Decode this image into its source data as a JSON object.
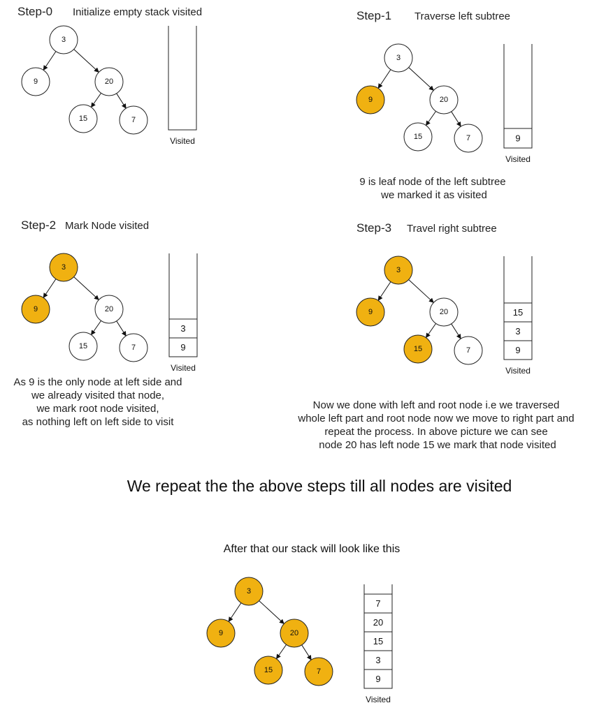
{
  "colors": {
    "visited": "#f0b111",
    "unvisited": "#ffffff"
  },
  "steps": [
    {
      "id": "step-0",
      "label": "Step-0",
      "title": "Initialize empty stack visited",
      "tree": {
        "3": false,
        "9": false,
        "20": false,
        "15": false,
        "7": false
      },
      "stack": [],
      "stack_label": "Visited",
      "caption": []
    },
    {
      "id": "step-1",
      "label": "Step-1",
      "title": "Traverse left subtree",
      "tree": {
        "3": false,
        "9": true,
        "20": false,
        "15": false,
        "7": false
      },
      "stack": [
        "9"
      ],
      "stack_label": "Visited",
      "caption": [
        "9 is leaf node of the left subtree",
        "we marked it as visited"
      ]
    },
    {
      "id": "step-2",
      "label": "Step-2",
      "title": "Mark Node visited",
      "tree": {
        "3": true,
        "9": true,
        "20": false,
        "15": false,
        "7": false
      },
      "stack": [
        "3",
        "9"
      ],
      "stack_label": "Visited",
      "caption": [
        "As 9  is the only node at left side and",
        "we already visited  that node,",
        "we mark root node visited,",
        "as nothing left on left side to visit"
      ]
    },
    {
      "id": "step-3",
      "label": "Step-3",
      "title": "Travel right subtree",
      "tree": {
        "3": true,
        "9": true,
        "20": false,
        "15": true,
        "7": false
      },
      "stack": [
        "15",
        "3",
        "9"
      ],
      "stack_label": "Visited",
      "caption": [
        "Now we done with left and root node i.e we traversed",
        "whole left part and root node now we move to right part and",
        "repeat the process. In above picture we can see",
        "node 20 has left node 15 we mark that node visited"
      ]
    }
  ],
  "repeat_text": "We repeat the the above steps till all nodes are visited",
  "final": {
    "text": "After that our stack will look like this",
    "tree": {
      "3": true,
      "9": true,
      "20": true,
      "15": true,
      "7": true
    },
    "stack": [
      "7",
      "20",
      "15",
      "3",
      "9"
    ],
    "stack_label": "Visited"
  }
}
